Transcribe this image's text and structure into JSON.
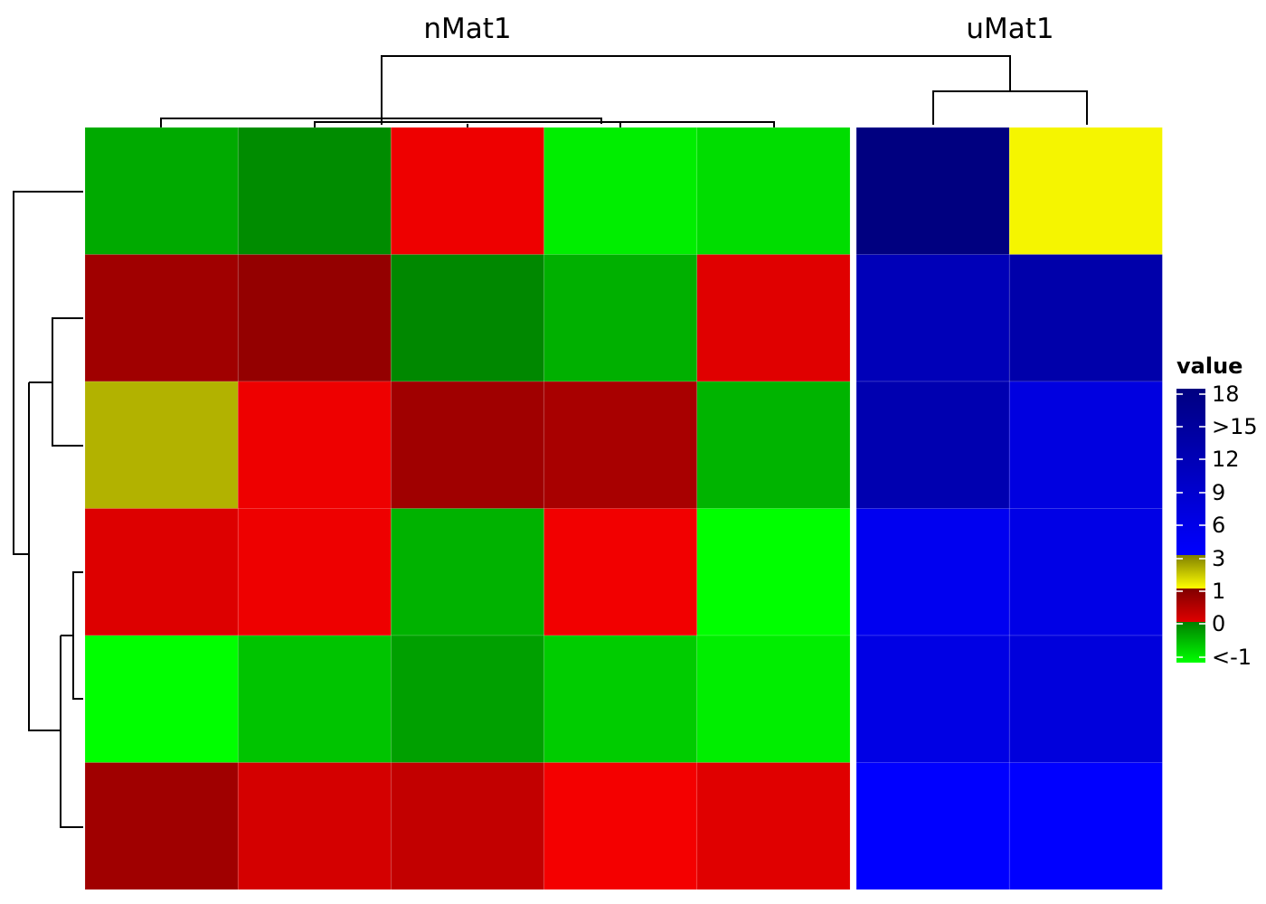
{
  "chart_data": {
    "type": "heatmap",
    "legend_position": "right",
    "groups": [
      {
        "title": "nMat1",
        "columns": 5,
        "values": [
          [
            "#00AA00",
            "#008C00",
            "#EE0000",
            "#00EE00",
            "#00DD00"
          ],
          [
            "#A00000",
            "#940000",
            "#008800",
            "#00B000",
            "#E00000"
          ],
          [
            "#B2B200",
            "#EE0000",
            "#A00000",
            "#A80000",
            "#00B400"
          ],
          [
            "#DD0000",
            "#EE0000",
            "#00B200",
            "#F20000",
            "#00FF00"
          ],
          [
            "#00FF00",
            "#00C400",
            "#00A000",
            "#00CC00",
            "#00EE00"
          ],
          [
            "#A00000",
            "#D40000",
            "#C20000",
            "#F40000",
            "#E00000"
          ]
        ]
      },
      {
        "title": "uMat1",
        "columns": 2,
        "values": [
          [
            "#000080",
            "#F5F500"
          ],
          [
            "#0000B8",
            "#0000AA"
          ],
          [
            "#0000B0",
            "#0000E0"
          ],
          [
            "#0000F0",
            "#0000E6"
          ],
          [
            "#0000E4",
            "#0000DC"
          ],
          [
            "#0000FF",
            "#0000FF"
          ]
        ]
      }
    ],
    "legend": {
      "title": "value",
      "ticks": [
        "18",
        ">15",
        "12",
        "9",
        "6",
        "3",
        "1",
        "0",
        "<-1"
      ],
      "segments": [
        {
          "from": "#00FF00",
          "to": "#008000"
        },
        {
          "from": "#E00000",
          "to": "#800000"
        },
        {
          "from": "#FFFF00",
          "to": "#808000"
        },
        {
          "from": "#0000FF",
          "to": "#000080"
        }
      ]
    }
  }
}
